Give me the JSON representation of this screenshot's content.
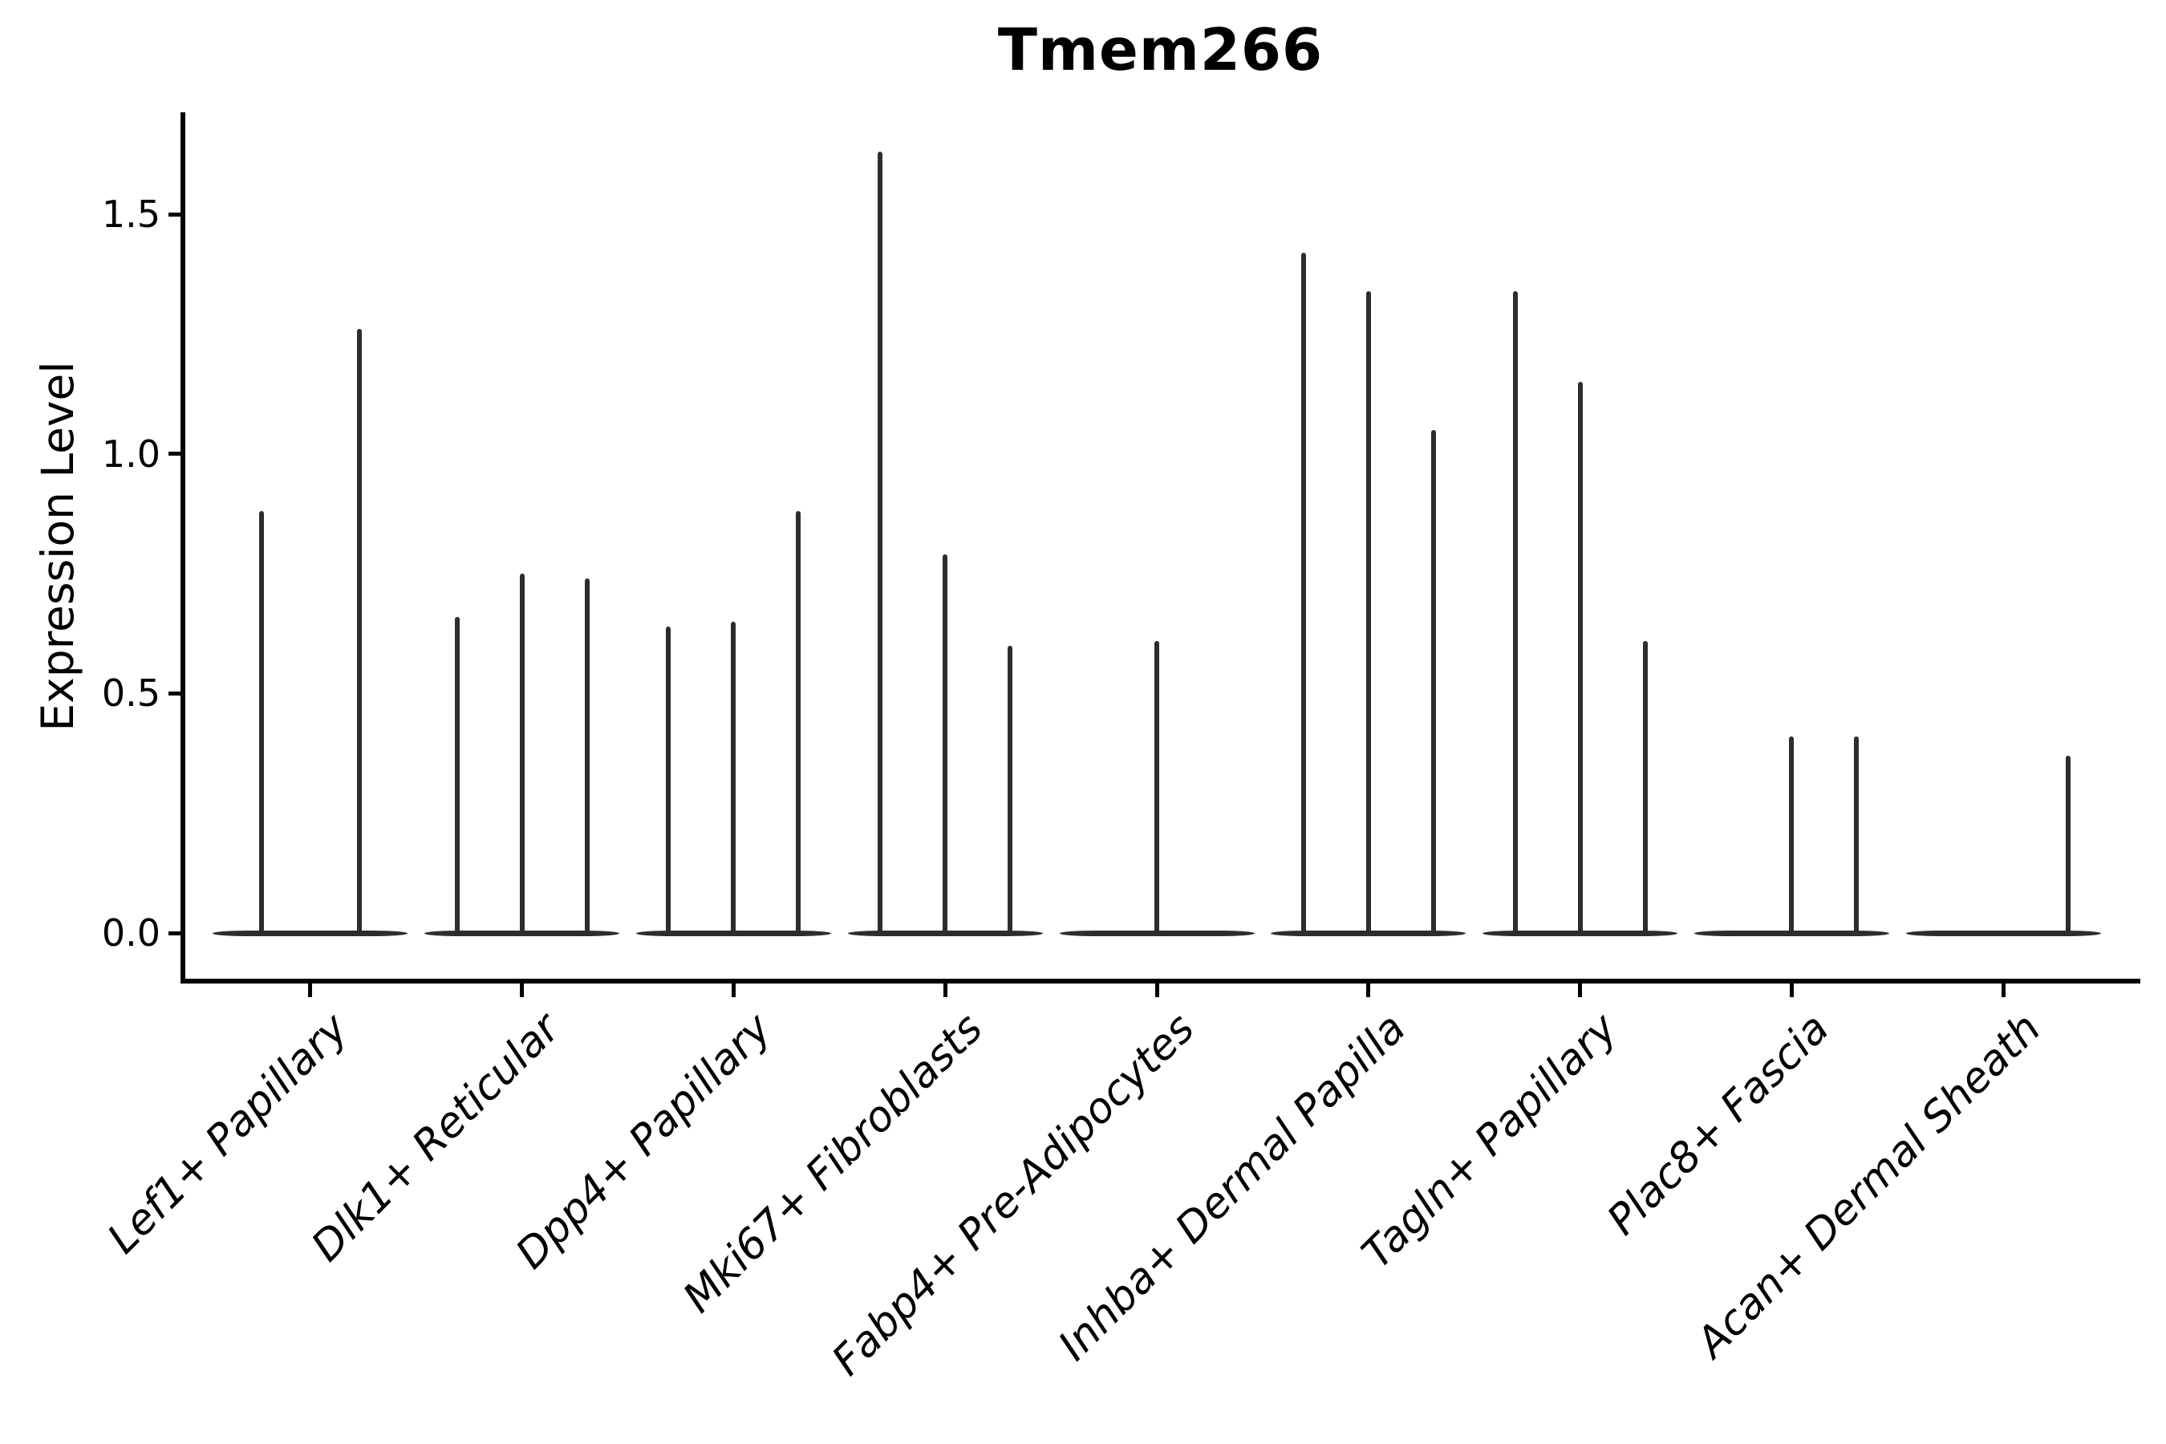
{
  "figure": {
    "title": "Tmem266",
    "ylabel": "Expression Level"
  },
  "colors": {
    "background": "#ffffff",
    "violin": "#2d2d2d",
    "axis": "#000000",
    "text": "#000000"
  },
  "chart_data": {
    "type": "violin",
    "title": "Tmem266",
    "xlabel": "",
    "ylabel": "Expression Level",
    "ylim": [
      -0.07,
      1.71
    ],
    "yticks": [
      0.0,
      0.5,
      1.0,
      1.5
    ],
    "ytick_labels": [
      "0.0",
      "0.5",
      "1.0",
      "1.5"
    ],
    "grid": false,
    "legend": false,
    "description": "Stacked violin plot of Tmem266 expression; each cluster shows flat violins collapsed at 0 with thin spikes reaching the maximum expression value per sub-violin.",
    "categories": [
      "Lef1+ Papillary",
      "Dlk1+ Reticular",
      "Dpp4+ Papillary",
      "Mki67+ Fibroblasts",
      "Fabp4+ Pre-Adipocytes",
      "Inhba+ Dermal Papilla",
      "Tagln+ Papillary",
      "Plac8+ Fascia",
      "Acan+ Dermal Sheath"
    ],
    "groups": [
      {
        "label": "Lef1+ Papillary",
        "slots": 2,
        "baseline_value": 0.0,
        "violins": [
          {
            "slot": 0,
            "max": 0.88
          },
          {
            "slot": 1,
            "max": 1.26
          }
        ]
      },
      {
        "label": "Dlk1+ Reticular",
        "slots": 3,
        "baseline_value": 0.0,
        "violins": [
          {
            "slot": 0,
            "max": 0.66
          },
          {
            "slot": 1,
            "max": 0.75
          },
          {
            "slot": 2,
            "max": 0.74
          }
        ]
      },
      {
        "label": "Dpp4+ Papillary",
        "slots": 3,
        "baseline_value": 0.0,
        "violins": [
          {
            "slot": 0,
            "max": 0.64
          },
          {
            "slot": 1,
            "max": 0.65
          },
          {
            "slot": 2,
            "max": 0.88
          }
        ]
      },
      {
        "label": "Mki67+ Fibroblasts",
        "slots": 3,
        "baseline_value": 0.0,
        "violins": [
          {
            "slot": 0,
            "max": 1.63
          },
          {
            "slot": 1,
            "max": 0.79
          },
          {
            "slot": 2,
            "max": 0.6
          }
        ]
      },
      {
        "label": "Fabp4+ Pre-Adipocytes",
        "slots": 1,
        "baseline_value": 0.0,
        "violins": [
          {
            "slot": 0,
            "max": 0.61
          }
        ]
      },
      {
        "label": "Inhba+ Dermal Papilla",
        "slots": 3,
        "baseline_value": 0.0,
        "violins": [
          {
            "slot": 0,
            "max": 1.42
          },
          {
            "slot": 1,
            "max": 1.34
          },
          {
            "slot": 2,
            "max": 1.05
          }
        ]
      },
      {
        "label": "Tagln+ Papillary",
        "slots": 3,
        "baseline_value": 0.0,
        "violins": [
          {
            "slot": 0,
            "max": 1.34
          },
          {
            "slot": 1,
            "max": 1.15
          },
          {
            "slot": 2,
            "max": 0.61
          }
        ]
      },
      {
        "label": "Plac8+ Fascia",
        "slots": 3,
        "baseline_value": 0.0,
        "violins": [
          {
            "slot": 1,
            "max": 0.41
          },
          {
            "slot": 2,
            "max": 0.41
          }
        ]
      },
      {
        "label": "Acan+ Dermal Sheath",
        "slots": 3,
        "baseline_value": 0.0,
        "violins": [
          {
            "slot": 2,
            "max": 0.37
          }
        ]
      }
    ]
  }
}
